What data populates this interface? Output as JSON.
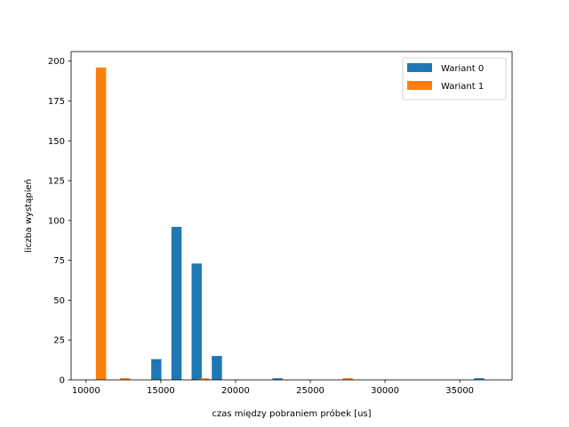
{
  "chart_data": {
    "type": "bar",
    "xlabel": "czas między pobraniem próbek [us]",
    "ylabel": "liczba wystąpień",
    "xlim": [
      9000,
      38500
    ],
    "ylim": [
      0,
      206
    ],
    "xticks": [
      10000,
      15000,
      20000,
      25000,
      30000,
      35000
    ],
    "yticks": [
      0,
      25,
      50,
      75,
      100,
      125,
      150,
      175,
      200
    ],
    "grid": false,
    "legend_position": "top-right",
    "bin_width": 680,
    "series": [
      {
        "name": "Wariant 0",
        "color": "#1f77b4",
        "bars": [
          {
            "x": 14700,
            "value": 13
          },
          {
            "x": 16050,
            "value": 96
          },
          {
            "x": 17400,
            "value": 73
          },
          {
            "x": 18750,
            "value": 15
          },
          {
            "x": 22800,
            "value": 1
          },
          {
            "x": 36300,
            "value": 1
          }
        ]
      },
      {
        "name": "Wariant 1",
        "color": "#ff7f0e",
        "bars": [
          {
            "x": 11000,
            "value": 196
          },
          {
            "x": 12600,
            "value": 1
          },
          {
            "x": 17900,
            "value": 1
          },
          {
            "x": 27500,
            "value": 1
          }
        ]
      }
    ]
  }
}
